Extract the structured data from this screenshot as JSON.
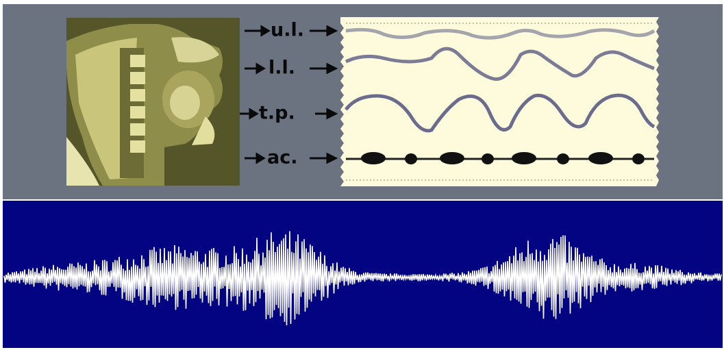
{
  "labels": [
    "u.l.",
    "l.l.",
    "t.p.",
    "ac."
  ]
}
